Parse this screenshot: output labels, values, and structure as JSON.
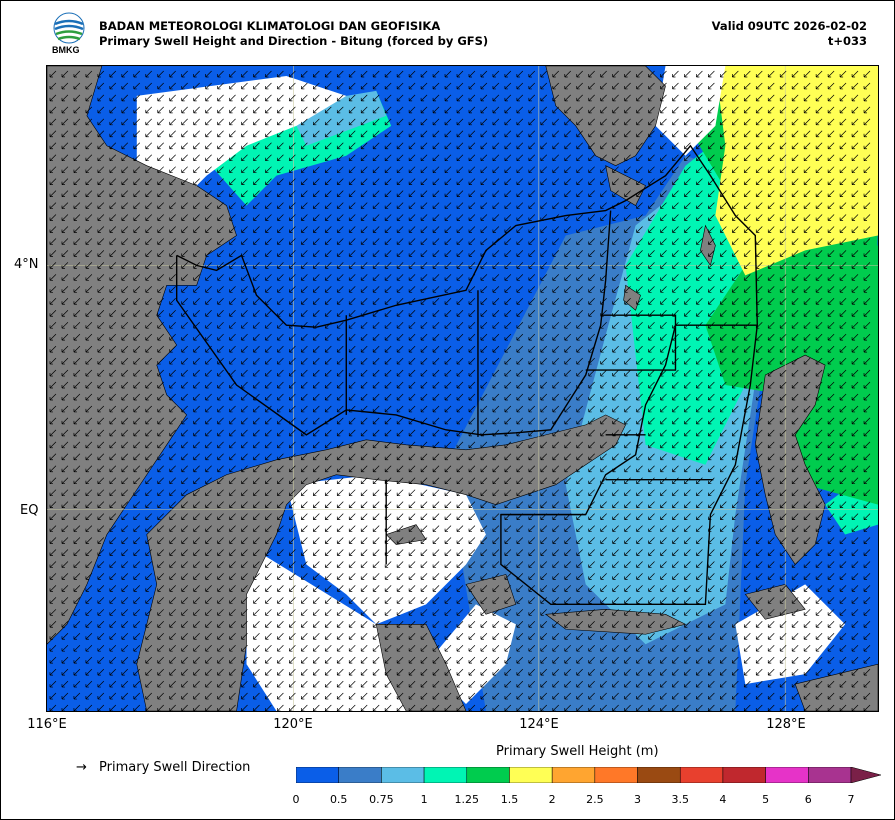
{
  "header": {
    "agency": "BADAN METEOROLOGI KLIMATOLOGI DAN GEOFISIKA",
    "subtitle": "Primary Swell Height and Direction - Bitung (forced by GFS)",
    "valid": "Valid 09UTC 2026-02-02",
    "step": "t+033",
    "logo_text": "BMKG"
  },
  "map": {
    "lat_labels": [
      "4°N",
      "EQ"
    ],
    "lon_labels": [
      "116°E",
      "120°E",
      "124°E",
      "128°E"
    ],
    "land_color": "#808080",
    "no_data_color": "#ffffff"
  },
  "legend": {
    "direction_label": "Primary Swell Direction",
    "direction_symbol": "→",
    "colorbar_title": "Primary Swell Height (m)",
    "ticks": [
      "0",
      "0.5",
      "0.75",
      "1",
      "1.25",
      "1.5",
      "2",
      "2.5",
      "3",
      "3.5",
      "4",
      "5",
      "6",
      "7"
    ],
    "colors": [
      "#0a5ee8",
      "#3a7dc8",
      "#5bbde6",
      "#00f5b4",
      "#00cc4e",
      "#ffff55",
      "#ffa530",
      "#ff7828",
      "#9a4a12",
      "#e8402e",
      "#c0282e",
      "#e633c8",
      "#a83390",
      "#7a2048"
    ]
  }
}
